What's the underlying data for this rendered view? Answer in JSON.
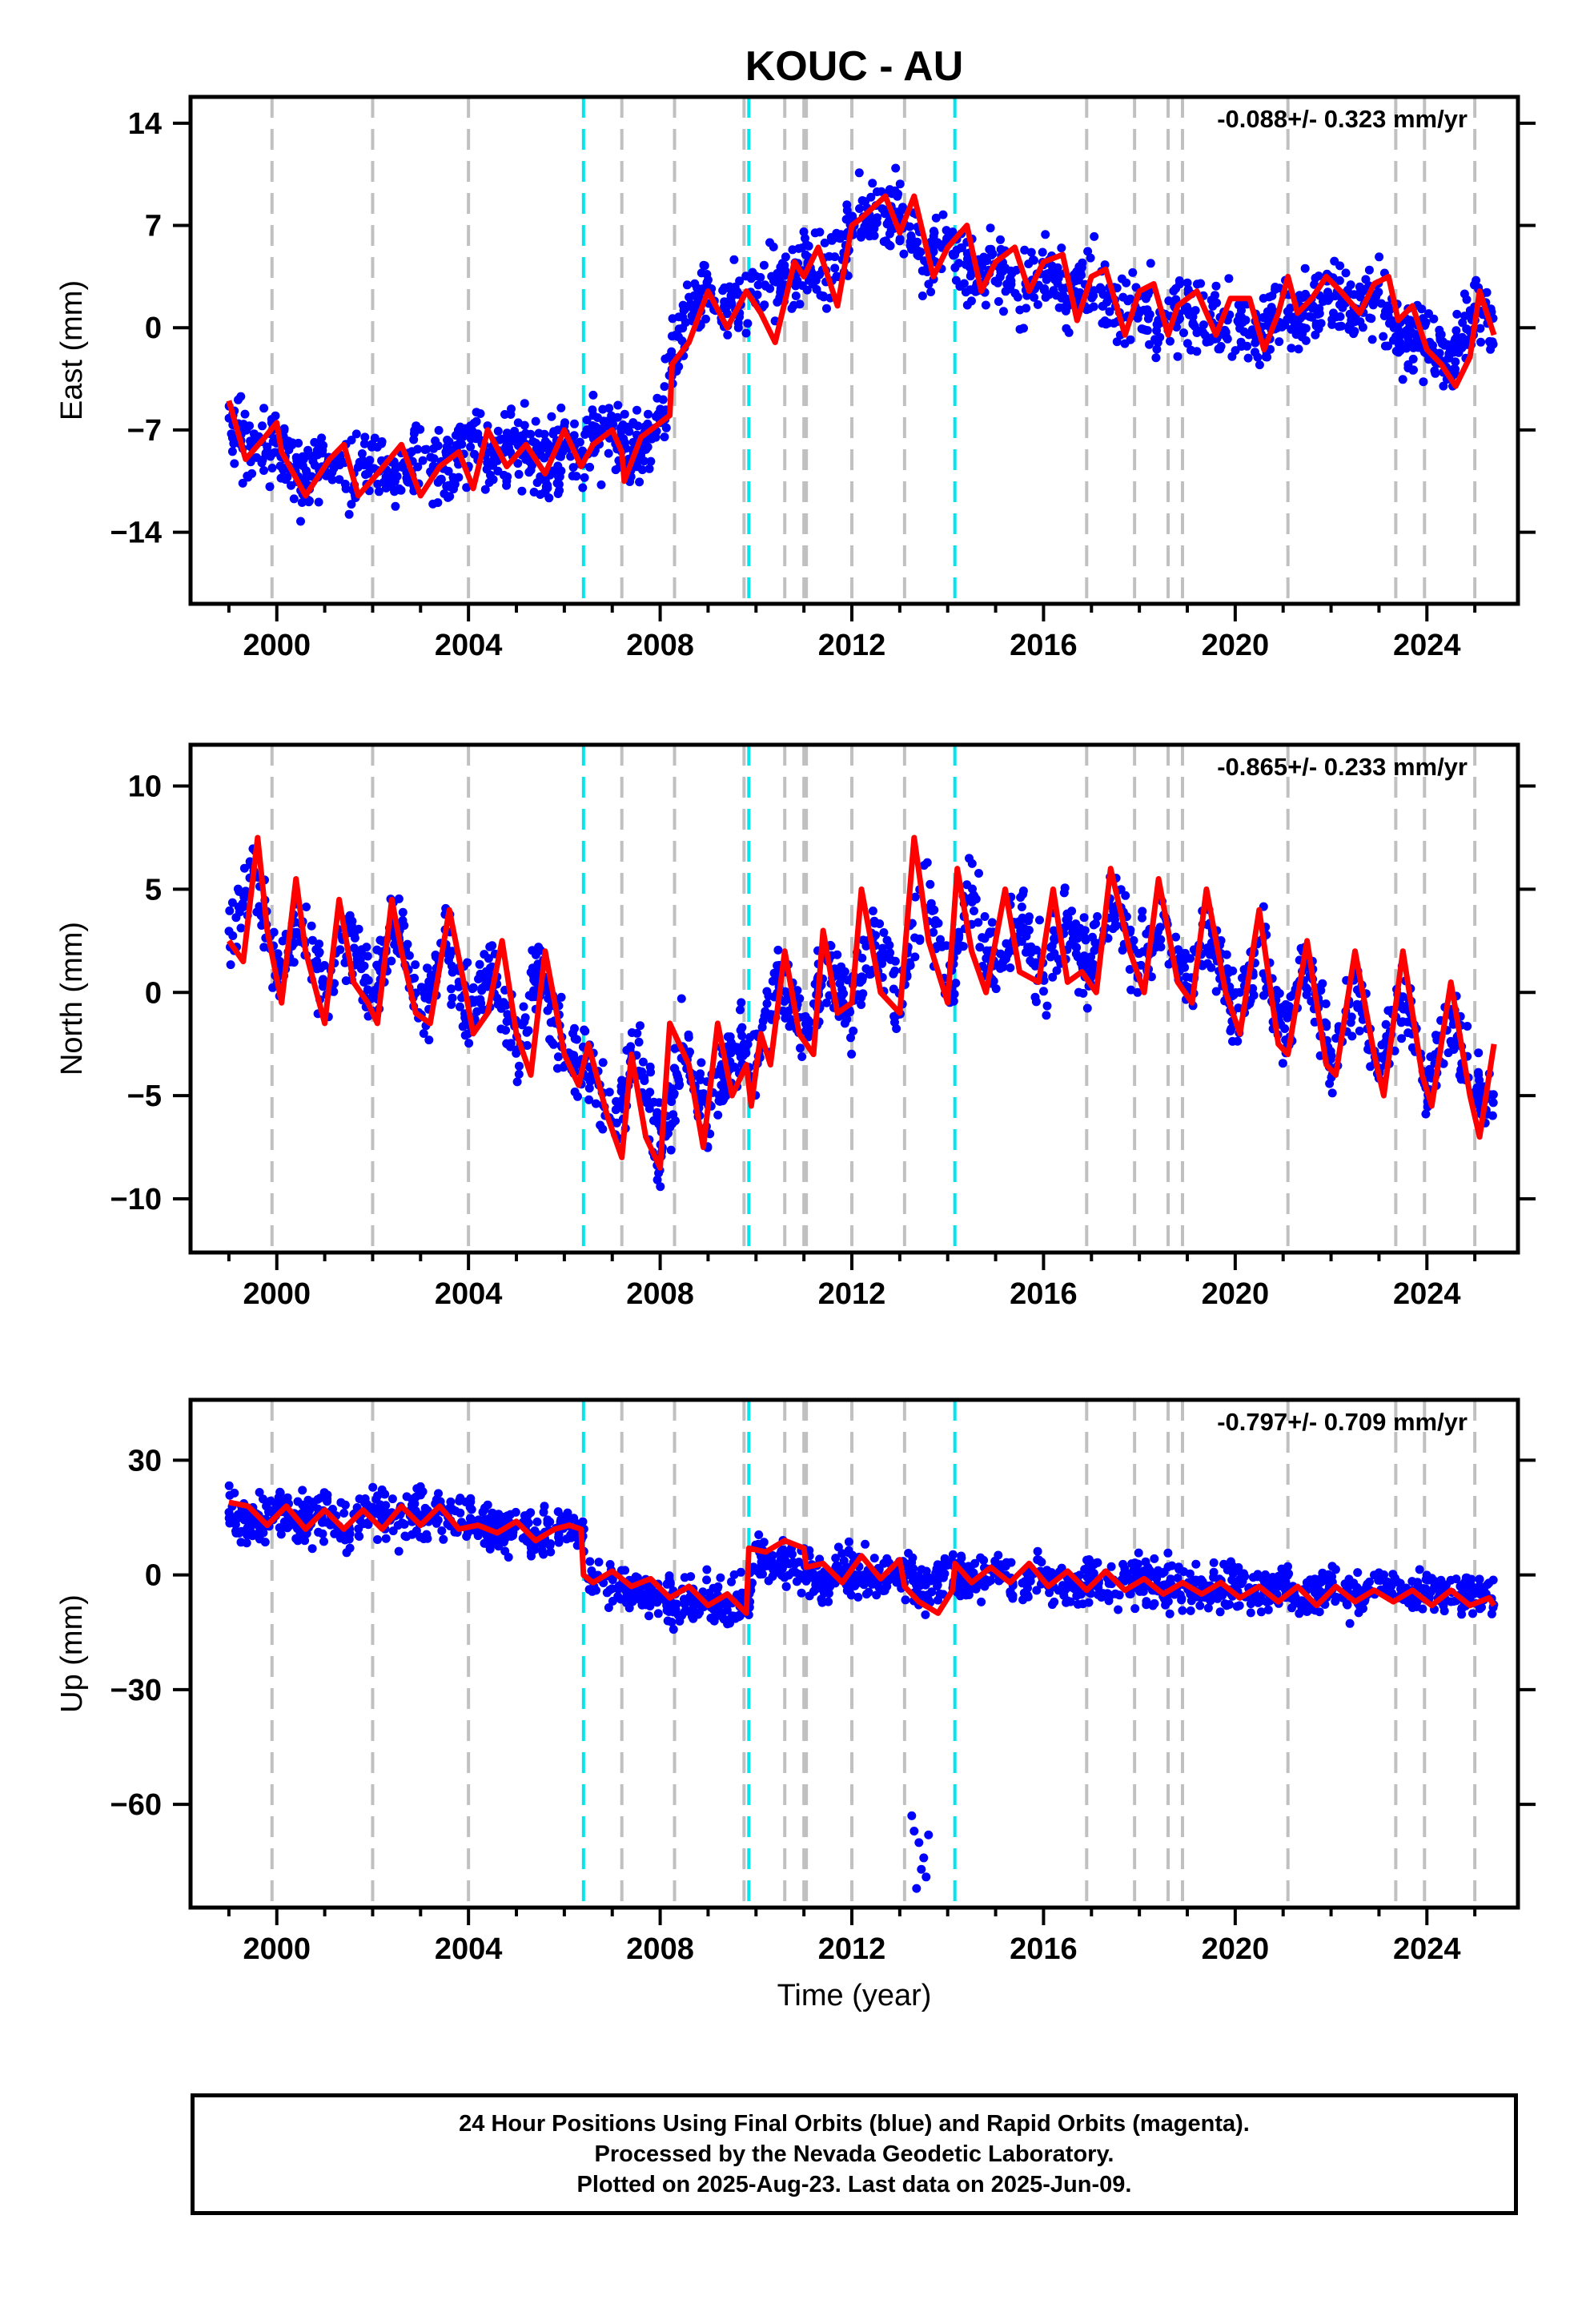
{
  "figure": {
    "title": "KOUC - AU",
    "xlabel": "Time (year)"
  },
  "footer": {
    "line1": "24 Hour Positions Using Final Orbits (blue) and Rapid Orbits (magenta).",
    "line2": "Processed by the Nevada Geodetic Laboratory.",
    "line3": "Plotted on 2025-Aug-23. Last data on 2025-Jun-09."
  },
  "colors": {
    "points": "#0000ff",
    "model": "#ff0000",
    "gray_lines": "#c0c0c0",
    "cyan_lines": "#00e5ee",
    "axes": "#000000"
  },
  "chart_data": [
    {
      "type": "scatter",
      "component": "East",
      "ylabel": "East (mm)",
      "rate_text": "-0.088+/- 0.323 mm/yr",
      "xlim": [
        1998.2,
        2025.9
      ],
      "ylim": [
        -18.9,
        15.8
      ],
      "xticks": [
        2000,
        2004,
        2008,
        2012,
        2016,
        2020,
        2024
      ],
      "yticks": [
        -14,
        -7,
        0,
        7,
        14
      ],
      "series": [
        {
          "style": "dense-points",
          "x": [
            1999.0,
            1999.5,
            2000.0,
            2000.5,
            2001.0,
            2001.5,
            2002.0,
            2002.5,
            2003.0,
            2003.5,
            2004.0,
            2004.5,
            2005.0,
            2005.5,
            2006.0,
            2006.5,
            2007.0,
            2007.5,
            2008.0,
            2008.5,
            2009.0,
            2009.5,
            2010.0,
            2010.5,
            2011.0,
            2011.5,
            2012.0,
            2012.5,
            2013.0,
            2013.5,
            2014.0,
            2014.5,
            2015.0,
            2015.5,
            2016.0,
            2016.5,
            2017.0,
            2017.5,
            2018.0,
            2018.5,
            2019.0,
            2019.5,
            2020.0,
            2020.5,
            2021.0,
            2021.5,
            2022.0,
            2022.5,
            2023.0,
            2023.5,
            2024.0,
            2024.5,
            2025.0,
            2025.4
          ],
          "center": [
            -6.0,
            -9.0,
            -8.0,
            -10.5,
            -9.0,
            -10.5,
            -8.5,
            -10.5,
            -9.0,
            -10.5,
            -7.5,
            -9.5,
            -7.5,
            -9.5,
            -8.0,
            -8.5,
            -7.0,
            -8.5,
            -6.5,
            1.0,
            2.5,
            1.5,
            2.5,
            3.0,
            4.0,
            3.5,
            7.0,
            7.5,
            8.0,
            4.5,
            6.0,
            3.5,
            4.5,
            2.5,
            4.0,
            2.0,
            3.0,
            1.0,
            1.5,
            0.5,
            1.5,
            0.5,
            0.5,
            -0.5,
            1.5,
            1.0,
            2.5,
            1.5,
            2.5,
            -1.0,
            -0.5,
            -2.5,
            1.0,
            0.0
          ],
          "spread": 3.2
        },
        {
          "style": "model-line",
          "x": [
            1999.0,
            1999.35,
            1999.75,
            2000.0,
            2000.1,
            2000.6,
            2001.1,
            2001.4,
            2001.7,
            2002.1,
            2002.6,
            2003.0,
            2003.4,
            2003.8,
            2004.1,
            2004.4,
            2004.8,
            2005.2,
            2005.6,
            2006.0,
            2006.35,
            2006.6,
            2007.0,
            2007.2,
            2007.25,
            2007.6,
            2008.0,
            2008.2,
            2008.25,
            2008.6,
            2009.0,
            2009.4,
            2009.8,
            2010.1,
            2010.4,
            2010.8,
            2011.0,
            2011.3,
            2011.7,
            2012.0,
            2012.2,
            2012.7,
            2013.0,
            2013.3,
            2013.7,
            2014.0,
            2014.4,
            2014.7,
            2015.0,
            2015.4,
            2015.7,
            2016.0,
            2016.4,
            2016.7,
            2017.0,
            2017.3,
            2017.7,
            2018.0,
            2018.3,
            2018.6,
            2018.8,
            2019.2,
            2019.6,
            2019.9,
            2020.3,
            2020.6,
            2020.9,
            2021.1,
            2021.3,
            2021.6,
            2021.9,
            2022.2,
            2022.6,
            2022.9,
            2023.2,
            2023.4,
            2023.7,
            2024.0,
            2024.3,
            2024.6,
            2024.9,
            2025.1,
            2025.4
          ],
          "y": [
            -5.0,
            -9.0,
            -7.5,
            -6.5,
            -8.5,
            -11.5,
            -9.0,
            -8.0,
            -11.5,
            -10.0,
            -8.0,
            -11.5,
            -9.5,
            -8.5,
            -11.0,
            -7.0,
            -9.5,
            -8.0,
            -10.0,
            -7.0,
            -9.5,
            -8.0,
            -7.0,
            -8.5,
            -10.5,
            -7.5,
            -6.5,
            -6.0,
            -2.5,
            -1.0,
            2.5,
            0.0,
            2.5,
            1.0,
            -1.0,
            4.5,
            3.5,
            5.5,
            1.5,
            7.0,
            7.5,
            9.0,
            6.5,
            9.0,
            3.5,
            5.5,
            7.0,
            2.5,
            4.5,
            5.5,
            2.5,
            4.5,
            5.0,
            0.5,
            3.5,
            4.0,
            -0.5,
            2.5,
            3.0,
            -0.5,
            1.5,
            2.5,
            -0.5,
            2.0,
            2.0,
            -1.5,
            1.0,
            3.5,
            1.0,
            2.0,
            3.5,
            2.5,
            1.0,
            3.0,
            3.5,
            0.5,
            1.5,
            -1.5,
            -2.5,
            -4.0,
            -2.0,
            2.5,
            -0.5
          ]
        }
      ],
      "gray_lines": [
        1999.9,
        2002.0,
        2004.0,
        2007.2,
        2008.3,
        2009.75,
        2010.6,
        2011.0,
        2011.05,
        2012.0,
        2013.1,
        2016.9,
        2017.9,
        2018.6,
        2018.9,
        2021.1,
        2023.35,
        2023.95,
        2025.0
      ],
      "cyan_lines": [
        2006.4,
        2009.85,
        2014.15
      ]
    },
    {
      "type": "scatter",
      "component": "North",
      "ylabel": "North (mm)",
      "rate_text": "-0.865+/- 0.233 mm/yr",
      "xlim": [
        1998.2,
        2025.9
      ],
      "ylim": [
        -12.6,
        12.0
      ],
      "xticks": [
        2000,
        2004,
        2008,
        2012,
        2016,
        2020,
        2024
      ],
      "yticks": [
        -10,
        -5,
        0,
        5,
        10
      ],
      "series": [
        {
          "style": "dense-points",
          "x": [
            1999.0,
            1999.5,
            2000.0,
            2000.5,
            2001.0,
            2001.5,
            2002.0,
            2002.5,
            2003.0,
            2003.5,
            2004.0,
            2004.5,
            2005.0,
            2005.5,
            2006.0,
            2006.5,
            2007.0,
            2007.5,
            2008.0,
            2008.5,
            2009.0,
            2009.5,
            2010.0,
            2010.5,
            2011.0,
            2011.5,
            2012.0,
            2012.5,
            2013.0,
            2013.5,
            2014.0,
            2014.5,
            2015.0,
            2015.5,
            2016.0,
            2016.5,
            2017.0,
            2017.5,
            2018.0,
            2018.5,
            2019.0,
            2019.5,
            2020.0,
            2020.5,
            2021.0,
            2021.5,
            2022.0,
            2022.5,
            2023.0,
            2023.5,
            2024.0,
            2024.5,
            2025.0,
            2025.4
          ],
          "center": [
            3.0,
            6.0,
            1.0,
            3.5,
            0.0,
            3.0,
            -0.5,
            3.5,
            -1.0,
            2.5,
            -1.0,
            1.0,
            -2.5,
            1.0,
            -3.0,
            -3.5,
            -6.5,
            -3.0,
            -7.5,
            -2.5,
            -6.0,
            -2.5,
            -3.0,
            1.0,
            -2.0,
            1.0,
            -1.0,
            3.0,
            -0.5,
            5.0,
            0.5,
            5.0,
            1.0,
            3.5,
            0.5,
            3.5,
            1.0,
            4.5,
            1.0,
            3.5,
            0.5,
            3.0,
            -1.5,
            2.5,
            -2.0,
            1.5,
            -3.5,
            0.5,
            -4.0,
            0.0,
            -4.5,
            -1.0,
            -5.0,
            -5.0
          ],
          "spread": 2.4
        },
        {
          "style": "model-line",
          "x": [
            1999.0,
            1999.3,
            1999.6,
            1999.8,
            2000.1,
            2000.4,
            2000.6,
            2001.0,
            2001.3,
            2001.6,
            2001.9,
            2002.1,
            2002.4,
            2002.6,
            2002.9,
            2003.2,
            2003.6,
            2003.9,
            2004.1,
            2004.4,
            2004.7,
            2005.0,
            2005.3,
            2005.6,
            2006.0,
            2006.3,
            2006.5,
            2006.9,
            2007.2,
            2007.4,
            2007.7,
            2008.0,
            2008.2,
            2008.6,
            2008.9,
            2009.2,
            2009.5,
            2009.8,
            2009.9,
            2010.1,
            2010.3,
            2010.6,
            2010.9,
            2011.2,
            2011.4,
            2011.7,
            2012.0,
            2012.2,
            2012.6,
            2013.0,
            2013.3,
            2013.6,
            2014.0,
            2014.2,
            2014.5,
            2014.8,
            2015.2,
            2015.5,
            2015.9,
            2016.2,
            2016.5,
            2016.8,
            2017.1,
            2017.4,
            2017.8,
            2018.1,
            2018.4,
            2018.8,
            2019.1,
            2019.4,
            2019.8,
            2020.1,
            2020.5,
            2020.9,
            2021.1,
            2021.5,
            2021.9,
            2022.1,
            2022.5,
            2022.9,
            2023.1,
            2023.5,
            2023.9,
            2024.1,
            2024.5,
            2024.9,
            2025.1,
            2025.4
          ],
          "y": [
            2.5,
            1.5,
            7.5,
            3.0,
            -0.5,
            5.5,
            2.0,
            -1.5,
            4.5,
            0.5,
            -0.5,
            -1.5,
            4.5,
            2.0,
            -1.0,
            -1.5,
            4.0,
            0.5,
            -2.0,
            -1.0,
            2.5,
            -2.0,
            -4.0,
            2.0,
            -3.0,
            -4.5,
            -2.5,
            -6.0,
            -8.0,
            -3.0,
            -7.0,
            -8.5,
            -1.5,
            -3.5,
            -7.5,
            -1.5,
            -5.0,
            -3.5,
            -5.5,
            -2.0,
            -3.5,
            2.0,
            -2.0,
            -3.0,
            3.0,
            -1.0,
            -0.5,
            5.0,
            0.0,
            -1.0,
            7.5,
            2.5,
            -0.5,
            6.0,
            2.0,
            0.0,
            5.0,
            1.0,
            0.5,
            5.0,
            0.5,
            1.0,
            0.0,
            6.0,
            2.0,
            0.0,
            5.5,
            0.5,
            -0.5,
            5.0,
            0.0,
            -2.0,
            4.0,
            -2.5,
            -3.0,
            2.5,
            -3.5,
            -4.0,
            2.0,
            -3.0,
            -5.0,
            2.0,
            -4.0,
            -5.5,
            0.5,
            -5.0,
            -7.0,
            -2.5
          ],
          "rapid_gap": null
        }
      ],
      "gray_lines": [
        1999.9,
        2002.0,
        2004.0,
        2007.2,
        2008.3,
        2009.75,
        2010.6,
        2011.0,
        2011.05,
        2012.0,
        2013.1,
        2016.9,
        2017.9,
        2018.6,
        2018.9,
        2021.1,
        2023.35,
        2023.95,
        2025.0
      ],
      "cyan_lines": [
        2006.4,
        2009.85,
        2014.15
      ]
    },
    {
      "type": "scatter",
      "component": "Up",
      "ylabel": "Up (mm)",
      "rate_text": "-0.797+/- 0.709 mm/yr",
      "xlim": [
        1998.2,
        2025.9
      ],
      "ylim": [
        -87.0,
        45.8
      ],
      "xticks": [
        2000,
        2004,
        2008,
        2012,
        2016,
        2020,
        2024
      ],
      "yticks": [
        -60,
        -30,
        0,
        30
      ],
      "series": [
        {
          "style": "dense-points",
          "x": [
            1999.0,
            1999.5,
            2000.0,
            2000.5,
            2001.0,
            2001.5,
            2002.0,
            2002.5,
            2003.0,
            2003.5,
            2004.0,
            2004.5,
            2005.0,
            2005.5,
            2006.0,
            2006.4,
            2006.5,
            2007.0,
            2007.5,
            2008.0,
            2008.5,
            2009.0,
            2009.5,
            2009.85,
            2010.0,
            2010.5,
            2011.0,
            2011.5,
            2012.0,
            2012.5,
            2013.0,
            2013.5,
            2014.0,
            2014.5,
            2015.0,
            2015.5,
            2016.0,
            2016.5,
            2017.0,
            2017.5,
            2018.0,
            2018.5,
            2019.0,
            2019.5,
            2020.0,
            2020.5,
            2021.0,
            2021.5,
            2022.0,
            2022.5,
            2023.0,
            2023.5,
            2024.0,
            2024.5,
            2025.0,
            2025.4
          ],
          "center": [
            18.0,
            13.0,
            17.0,
            13.0,
            16.0,
            13.0,
            17.0,
            14.0,
            16.0,
            14.0,
            15.0,
            11.0,
            13.0,
            10.0,
            13.0,
            12.0,
            0.0,
            -3.0,
            -4.0,
            -6.0,
            -7.0,
            -6.0,
            -8.0,
            -8.0,
            5.0,
            4.0,
            2.0,
            -1.0,
            2.0,
            -2.0,
            1.0,
            -3.0,
            1.0,
            -2.0,
            1.0,
            -3.0,
            0.0,
            -3.0,
            0.0,
            -3.0,
            -1.0,
            -4.0,
            -2.0,
            -4.0,
            -3.0,
            -5.0,
            -3.0,
            -6.0,
            -3.0,
            -6.0,
            -3.0,
            -6.0,
            -4.0,
            -6.0,
            -4.0,
            -8.0
          ],
          "spread": 8.0
        },
        {
          "style": "outlier-cluster",
          "x": [
            2013.25,
            2013.3,
            2013.35,
            2013.4,
            2013.45,
            2013.5,
            2013.55,
            2013.6
          ],
          "y": [
            -63,
            -67,
            -82,
            -70,
            -77,
            -74,
            -79,
            -68
          ]
        },
        {
          "style": "model-line",
          "x": [
            1999.0,
            1999.4,
            1999.8,
            2000.2,
            2000.6,
            2001.0,
            2001.4,
            2001.8,
            2002.2,
            2002.6,
            2003.0,
            2003.4,
            2003.8,
            2004.2,
            2004.6,
            2005.0,
            2005.4,
            2005.8,
            2006.1,
            2006.35,
            2006.4,
            2006.6,
            2007.0,
            2007.4,
            2007.8,
            2008.2,
            2008.6,
            2009.0,
            2009.4,
            2009.8,
            2009.85,
            2010.2,
            2010.6,
            2011.0,
            2011.05,
            2011.4,
            2011.8,
            2012.2,
            2012.6,
            2013.0,
            2013.1,
            2013.4,
            2013.8,
            2014.1,
            2014.15,
            2014.5,
            2014.9,
            2015.3,
            2015.7,
            2016.1,
            2016.5,
            2016.9,
            2017.3,
            2017.7,
            2018.1,
            2018.5,
            2018.9,
            2019.3,
            2019.7,
            2020.1,
            2020.5,
            2020.9,
            2021.3,
            2021.7,
            2022.1,
            2022.5,
            2022.9,
            2023.3,
            2023.7,
            2024.1,
            2024.5,
            2024.9,
            2025.3,
            2025.4
          ],
          "y": [
            19,
            18,
            13,
            18,
            12,
            17,
            12,
            17,
            12,
            18,
            13,
            18,
            12,
            13,
            11,
            14,
            9,
            12,
            13,
            12,
            0,
            -2,
            1,
            -3,
            -1,
            -6,
            -3,
            -8,
            -5,
            -10,
            7,
            6,
            9,
            7,
            2,
            3,
            -2,
            5,
            -1,
            4,
            -3,
            -7,
            -10,
            -4,
            3,
            -2,
            2,
            -2,
            3,
            -3,
            1,
            -4,
            1,
            -4,
            -1,
            -5,
            -2,
            -5,
            -2,
            -6,
            -3,
            -7,
            -3,
            -8,
            -3,
            -7,
            -4,
            -7,
            -4,
            -8,
            -4,
            -8,
            -6,
            -8
          ]
        }
      ],
      "gray_lines": [
        1999.9,
        2002.0,
        2004.0,
        2007.2,
        2008.3,
        2009.75,
        2010.6,
        2011.0,
        2011.05,
        2012.0,
        2013.1,
        2016.9,
        2017.9,
        2018.6,
        2018.9,
        2021.1,
        2023.35,
        2023.95,
        2025.0
      ],
      "cyan_lines": [
        2006.4,
        2009.85,
        2014.15
      ]
    }
  ]
}
